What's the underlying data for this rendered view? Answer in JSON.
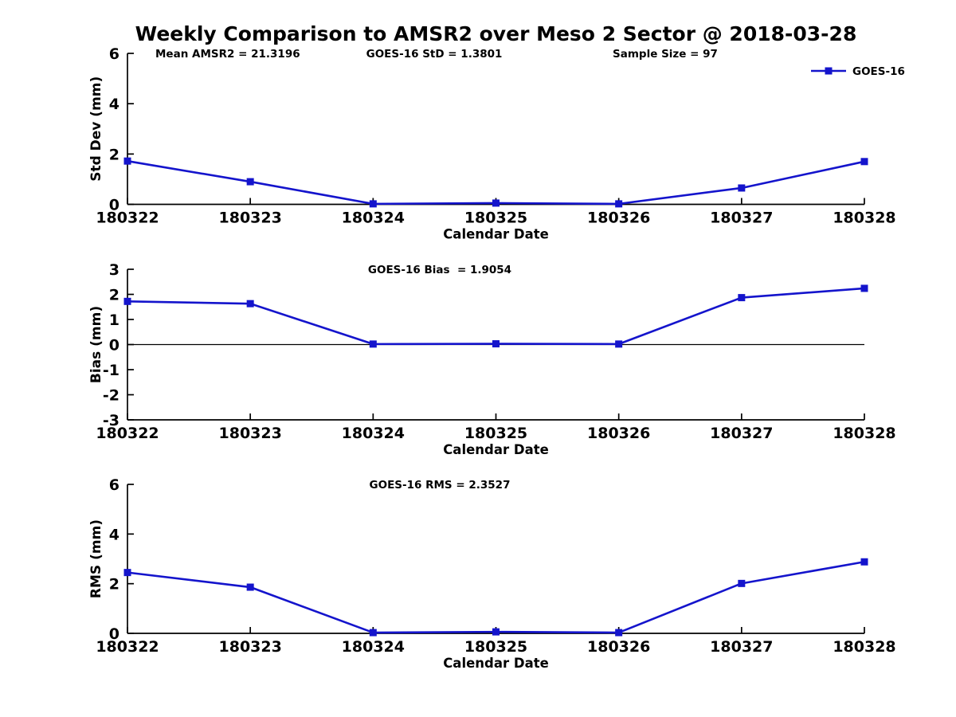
{
  "title": "Weekly Comparison to AMSR2 over Meso 2 Sector @ 2018-03-28",
  "colors": {
    "series": "#1414cc",
    "axis": "#000000",
    "background": "#ffffff"
  },
  "chart_data": [
    {
      "type": "line",
      "id": "std-dev",
      "annotations": [
        {
          "text": "Mean AMSR2 = 21.3196"
        },
        {
          "text": "GOES-16 StD = 1.3801"
        },
        {
          "text": "Sample Size = 97"
        }
      ],
      "categories": [
        "180322",
        "180323",
        "180324",
        "180325",
        "180326",
        "180327",
        "180328"
      ],
      "series": [
        {
          "name": "GOES-16",
          "values": [
            1.72,
            0.9,
            0.02,
            0.05,
            0.02,
            0.65,
            1.7
          ]
        }
      ],
      "xlabel": "Calendar Date",
      "ylabel": "Std Dev (mm)",
      "ylim": [
        0,
        6
      ],
      "yticks": [
        0,
        2,
        4,
        6
      ],
      "legend": {
        "label": "GOES-16",
        "position": "top-right"
      },
      "grid": false,
      "zero_line": false
    },
    {
      "type": "line",
      "id": "bias",
      "annotations": [
        {
          "text": "GOES-16 Bias  = 1.9054"
        }
      ],
      "categories": [
        "180322",
        "180323",
        "180324",
        "180325",
        "180326",
        "180327",
        "180328"
      ],
      "series": [
        {
          "name": "GOES-16",
          "values": [
            1.72,
            1.63,
            0.02,
            0.03,
            0.02,
            1.87,
            2.24
          ]
        }
      ],
      "xlabel": "Calendar Date",
      "ylabel": "Bias (mm)",
      "ylim": [
        -3,
        3
      ],
      "yticks": [
        3,
        2,
        1,
        0,
        -1,
        -2,
        -3
      ],
      "grid": false,
      "zero_line": true
    },
    {
      "type": "line",
      "id": "rms",
      "annotations": [
        {
          "text": "GOES-16 RMS = 2.3527"
        }
      ],
      "categories": [
        "180322",
        "180323",
        "180324",
        "180325",
        "180326",
        "180327",
        "180328"
      ],
      "series": [
        {
          "name": "GOES-16",
          "values": [
            2.45,
            1.86,
            0.03,
            0.06,
            0.03,
            2.01,
            2.88
          ]
        }
      ],
      "xlabel": "Calendar Date",
      "ylabel": "RMS (mm)",
      "ylim": [
        0,
        6
      ],
      "yticks": [
        0,
        2,
        4,
        6
      ],
      "grid": false,
      "zero_line": false
    }
  ]
}
